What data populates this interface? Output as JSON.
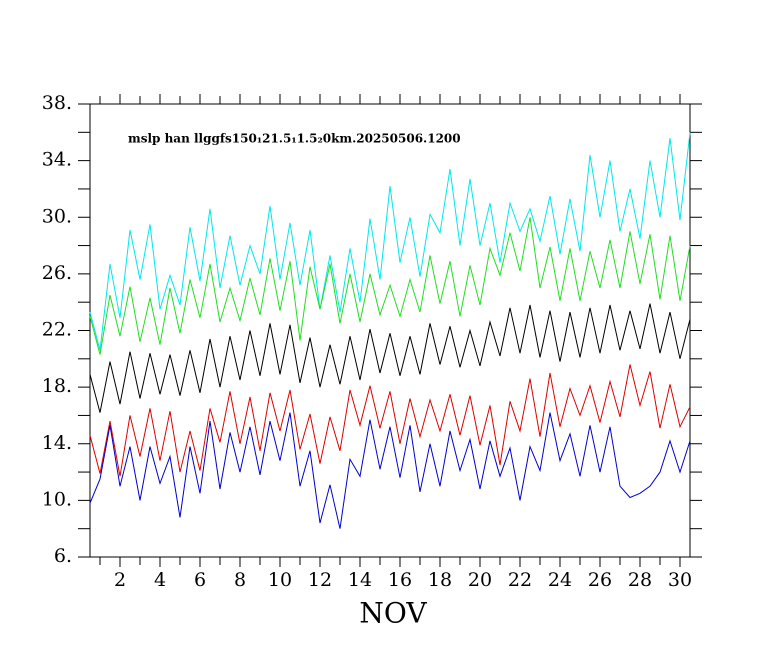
{
  "chart_data": {
    "type": "line",
    "title": "mslp han llggfs150₁21.5₁1.5₂0km.20250506.1200",
    "x_label": "NOV",
    "x": [
      0.5,
      1,
      1.5,
      2,
      2.5,
      3,
      3.5,
      4,
      4.5,
      5,
      5.5,
      6,
      6.5,
      7,
      7.5,
      8,
      8.5,
      9,
      9.5,
      10,
      10.5,
      11,
      11.5,
      12,
      12.5,
      13,
      13.5,
      14,
      14.5,
      15,
      15.5,
      16,
      16.5,
      17,
      17.5,
      18,
      18.5,
      19,
      19.5,
      20,
      20.5,
      21,
      21.5,
      22,
      22.5,
      23,
      23.5,
      24,
      24.5,
      25,
      25.5,
      26,
      26.5,
      27,
      27.5,
      28,
      28.5,
      29,
      29.5,
      30,
      30.5
    ],
    "series": [
      {
        "color": "#00e8e8",
        "values": [
          23.3,
          20.6,
          26.7,
          22.9,
          29.1,
          25.6,
          29.5,
          23.5,
          25.9,
          23.8,
          29.3,
          25.5,
          30.6,
          25.0,
          28.7,
          25.2,
          28.0,
          26.0,
          30.8,
          25.6,
          29.6,
          25.2,
          29.1,
          23.5,
          27.3,
          23.3,
          27.8,
          24.0,
          29.9,
          25.6,
          32.2,
          26.8,
          30.0,
          25.8,
          30.2,
          28.9,
          33.4,
          28.0,
          32.7,
          28.0,
          31.0,
          26.8,
          31.0,
          29.0,
          30.6,
          28.3,
          31.5,
          27.4,
          31.3,
          27.6,
          34.4,
          30.0,
          34.0,
          29.0,
          32.0,
          28.5,
          34.0,
          30.0,
          35.6,
          29.8,
          36.0
        ]
      },
      {
        "color": "#22dd22",
        "values": [
          23.0,
          20.3,
          24.5,
          21.6,
          25.1,
          21.2,
          24.3,
          21.0,
          25.0,
          21.8,
          25.6,
          22.9,
          26.7,
          22.6,
          25.0,
          22.7,
          25.7,
          23.1,
          27.1,
          23.4,
          26.9,
          21.3,
          26.5,
          23.5,
          26.7,
          22.5,
          26.0,
          22.6,
          26.0,
          23.1,
          25.2,
          23.0,
          25.6,
          23.3,
          27.3,
          23.9,
          26.9,
          23.0,
          26.6,
          23.8,
          27.8,
          25.9,
          28.9,
          26.2,
          30.0,
          25.0,
          27.9,
          24.1,
          27.8,
          24.1,
          27.6,
          25.0,
          28.4,
          25.0,
          29.0,
          25.3,
          28.8,
          24.2,
          28.7,
          24.1,
          28.0
        ]
      },
      {
        "color": "#000000",
        "values": [
          18.9,
          16.2,
          19.8,
          16.8,
          20.5,
          17.2,
          20.4,
          17.5,
          20.3,
          17.4,
          20.6,
          17.6,
          21.4,
          18.0,
          21.6,
          18.5,
          22.0,
          18.8,
          22.5,
          18.9,
          22.4,
          18.3,
          21.5,
          18.0,
          21.0,
          18.2,
          21.6,
          18.5,
          22.1,
          19.0,
          21.8,
          18.8,
          21.6,
          18.9,
          22.5,
          19.6,
          22.3,
          19.4,
          22.0,
          19.5,
          22.6,
          20.2,
          23.6,
          20.4,
          23.8,
          20.1,
          23.4,
          19.8,
          23.3,
          20.1,
          23.6,
          20.4,
          23.8,
          20.6,
          23.4,
          20.7,
          23.9,
          20.4,
          23.3,
          20.0,
          22.8
        ]
      },
      {
        "color": "#dd0000",
        "values": [
          14.6,
          11.9,
          15.6,
          11.7,
          16.0,
          13.1,
          16.5,
          12.8,
          16.3,
          12.0,
          14.9,
          12.1,
          16.5,
          14.1,
          17.7,
          14.0,
          17.3,
          13.5,
          17.6,
          14.9,
          17.8,
          13.6,
          16.1,
          12.6,
          15.9,
          13.5,
          17.8,
          15.3,
          18.1,
          15.1,
          17.7,
          14.0,
          17.2,
          14.5,
          17.1,
          14.9,
          17.5,
          14.6,
          17.4,
          13.9,
          16.7,
          12.5,
          17.0,
          14.9,
          18.6,
          14.5,
          19.0,
          15.2,
          17.9,
          16.0,
          18.1,
          15.5,
          18.4,
          15.9,
          19.6,
          16.7,
          19.1,
          15.1,
          18.2,
          15.2,
          16.6
        ]
      },
      {
        "color": "#0000cc",
        "values": [
          9.8,
          11.5,
          15.3,
          11.0,
          13.8,
          10.0,
          13.8,
          11.2,
          13.1,
          8.8,
          13.8,
          10.5,
          15.6,
          10.8,
          14.8,
          12.0,
          15.2,
          11.8,
          15.6,
          12.8,
          16.2,
          11.0,
          13.5,
          8.4,
          11.1,
          8.0,
          12.9,
          11.7,
          15.7,
          12.2,
          15.2,
          11.6,
          15.3,
          10.6,
          14.0,
          11.0,
          14.9,
          12.1,
          14.3,
          10.8,
          14.2,
          11.7,
          13.7,
          10.0,
          13.8,
          12.1,
          16.2,
          12.8,
          14.7,
          11.7,
          15.3,
          12.0,
          15.2,
          11.0,
          10.2,
          10.5,
          11.0,
          12.0,
          14.2,
          12.0,
          14.2
        ]
      }
    ],
    "xlim": [
      0.5,
      30.5
    ],
    "xticks": [
      2,
      4,
      6,
      8,
      10,
      12,
      14,
      16,
      18,
      20,
      22,
      24,
      26,
      28,
      30
    ],
    "xminor_ticks": [
      1,
      3,
      5,
      7,
      9,
      11,
      13,
      15,
      17,
      19,
      21,
      23,
      25,
      27,
      29
    ],
    "ylim": [
      6,
      38
    ],
    "yticks": [
      {
        "value": 6,
        "label": "6."
      },
      {
        "value": 10,
        "label": "10."
      },
      {
        "value": 14,
        "label": "14."
      },
      {
        "value": 18,
        "label": "18."
      },
      {
        "value": 22,
        "label": "22."
      },
      {
        "value": 26,
        "label": "26."
      },
      {
        "value": 30,
        "label": "30."
      },
      {
        "value": 34,
        "label": "34."
      },
      {
        "value": 38,
        "label": "38."
      }
    ],
    "yminor_ticks": [
      8,
      12,
      16,
      20,
      24,
      28,
      32,
      36
    ]
  }
}
